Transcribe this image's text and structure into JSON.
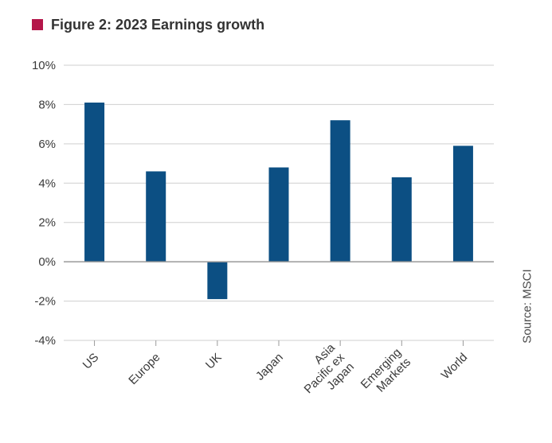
{
  "figure": {
    "title": "Figure 2: 2023 Earnings growth",
    "source": "Source: MSCI"
  },
  "colors": {
    "title_marker": "#b4164a",
    "bar": "#0c4f83",
    "grid": "#cfcfcf",
    "zero_line": "#9a9a9a",
    "text": "#3a3a3a"
  },
  "chart_data": {
    "type": "bar",
    "title": "Figure 2: 2023 Earnings growth",
    "xlabel": "",
    "ylabel": "",
    "categories": [
      "US",
      "Europe",
      "UK",
      "Japan",
      "Asia Pacific ex Japan",
      "Emerging Markets",
      "World"
    ],
    "category_label_lines": [
      [
        "US"
      ],
      [
        "Europe"
      ],
      [
        "UK"
      ],
      [
        "Japan"
      ],
      [
        "Asia",
        "Pacific ex",
        "Japan"
      ],
      [
        "Emerging",
        "Markets"
      ],
      [
        "World"
      ]
    ],
    "values": [
      8.1,
      4.6,
      -1.9,
      4.8,
      7.2,
      4.3,
      5.9
    ],
    "value_unit": "%",
    "ylim": [
      -4,
      10
    ],
    "yticks": [
      -4,
      -2,
      0,
      2,
      4,
      6,
      8,
      10
    ],
    "ytick_labels": [
      "-4%",
      "-2%",
      "0%",
      "2%",
      "4%",
      "6%",
      "8%",
      "10%"
    ],
    "grid": true,
    "legend": "none"
  }
}
